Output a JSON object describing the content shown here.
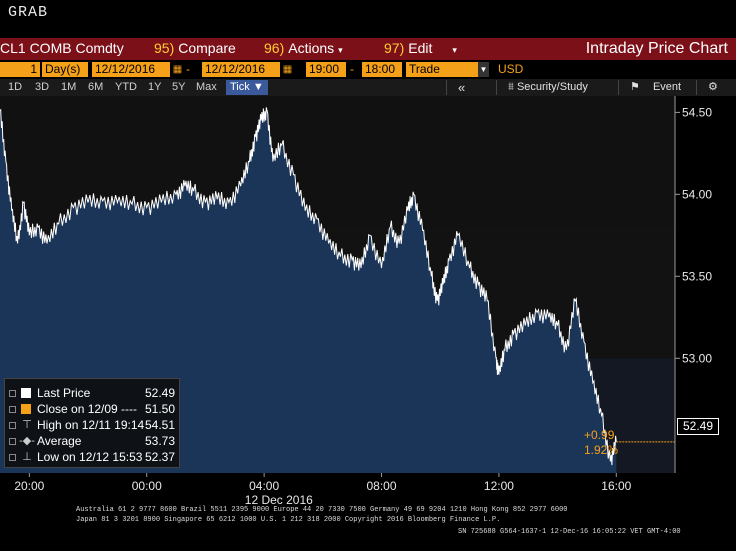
{
  "screen": {
    "top_label": "GRAB"
  },
  "toolbar": {
    "ticker": "CL1 COMB Comdty",
    "compare_num": "95)",
    "compare_label": "Compare",
    "actions_num": "96)",
    "actions_label": "Actions",
    "edit_num": "97)",
    "edit_label": "Edit",
    "chart_title": "Intraday Price Chart"
  },
  "params": {
    "period_count": "1",
    "period_unit": "Day(s)",
    "start_date": "12/12/2016",
    "end_date": "12/12/2016",
    "start_time": "19:00",
    "end_time": "18:00",
    "event": "Trade",
    "currency": "USD"
  },
  "ranges": [
    "1D",
    "3D",
    "1M",
    "6M",
    "YTD",
    "1Y",
    "5Y",
    "Max"
  ],
  "tick_label": "Tick",
  "tools": {
    "back": "«",
    "security_study": "Security/Study",
    "event": "Event",
    "settings": "⚙"
  },
  "legend": {
    "last_price_label": "Last Price",
    "last_price_value": "52.49",
    "close_label": "Close on 12/09 ----",
    "close_value": "51.50",
    "high_label": "High on 12/11 19:14",
    "high_value": "54.51",
    "average_label": "Average",
    "average_value": "53.73",
    "low_label": "Low on 12/12 15:53",
    "low_value": "52.37"
  },
  "last_price_box": "52.49",
  "change_abs": "+0.99",
  "change_pct": "1.92%",
  "date_label": "12 Dec 2016",
  "colors": {
    "area": "#1b3558",
    "line": "#ffffff",
    "accent": "#f5a019",
    "header_red": "#7b1019"
  },
  "footer": {
    "line1": "Australia 61 2 9777 8600 Brazil 5511 2395 9000 Europe 44 20 7330 7500 Germany 49 69 9204 1210 Hong Kong 852 2977 6000",
    "line2": "Japan 81 3 3201 8900       Singapore 65 6212 1000       U.S. 1 212 318 2000           Copyright 2016 Bloomberg Finance L.P.",
    "line3": "SN 725688 G564-1637-1 12-Dec-16 16:05:22 VET  GMT-4:00"
  },
  "chart_data": {
    "type": "area",
    "x_unit": "hours since 19:00 (11 Dec)",
    "x_ticks": [
      {
        "t": 1,
        "label": "20:00"
      },
      {
        "t": 5,
        "label": "00:00"
      },
      {
        "t": 9,
        "label": "04:00"
      },
      {
        "t": 13,
        "label": "08:00"
      },
      {
        "t": 17,
        "label": "12:00"
      },
      {
        "t": 21,
        "label": "16:00"
      }
    ],
    "xlim": [
      0,
      23
    ],
    "ylim": [
      52.3,
      54.6
    ],
    "y_ticks": [
      "53.00",
      "53.50",
      "54.00",
      "54.50"
    ],
    "y_tick_values": [
      53.0,
      53.5,
      54.0,
      54.5
    ],
    "series": [
      {
        "name": "Last Price",
        "x": [
          0,
          0.2,
          0.4,
          0.6,
          0.8,
          1,
          1.3,
          1.6,
          2,
          2.5,
          3,
          3.5,
          4,
          4.5,
          5,
          5.5,
          6,
          6.3,
          6.6,
          7,
          7.4,
          7.8,
          8.2,
          8.5,
          8.7,
          8.9,
          9.1,
          9.3,
          9.6,
          10,
          10.4,
          10.8,
          11.2,
          11.6,
          12,
          12.3,
          12.6,
          13,
          13.3,
          13.6,
          13.9,
          14.1,
          14.4,
          14.7,
          14.9,
          15.1,
          15.3,
          15.6,
          16,
          16.3,
          16.6,
          16.9,
          17,
          17.2,
          17.5,
          17.9,
          18.3,
          18.7,
          19,
          19.3,
          19.6,
          19.9,
          20.2,
          20.5,
          20.8,
          21
        ],
        "values": [
          54.51,
          54.2,
          53.9,
          53.7,
          53.95,
          53.75,
          53.8,
          53.7,
          53.82,
          53.92,
          53.95,
          53.96,
          53.95,
          53.94,
          53.92,
          53.95,
          54.0,
          54.05,
          54.02,
          53.95,
          53.97,
          53.95,
          54.05,
          54.2,
          54.35,
          54.45,
          54.51,
          54.2,
          54.3,
          54.12,
          53.9,
          53.85,
          53.7,
          53.62,
          53.6,
          53.55,
          53.75,
          53.55,
          53.8,
          53.7,
          53.9,
          54.0,
          53.78,
          53.5,
          53.35,
          53.45,
          53.6,
          53.75,
          53.55,
          53.45,
          53.35,
          53.0,
          52.9,
          53.05,
          53.15,
          53.2,
          53.28,
          53.25,
          53.2,
          53.05,
          53.35,
          53.1,
          52.85,
          52.65,
          52.37,
          52.49
        ]
      }
    ],
    "legend_position": "bottom-left",
    "grid": false
  }
}
